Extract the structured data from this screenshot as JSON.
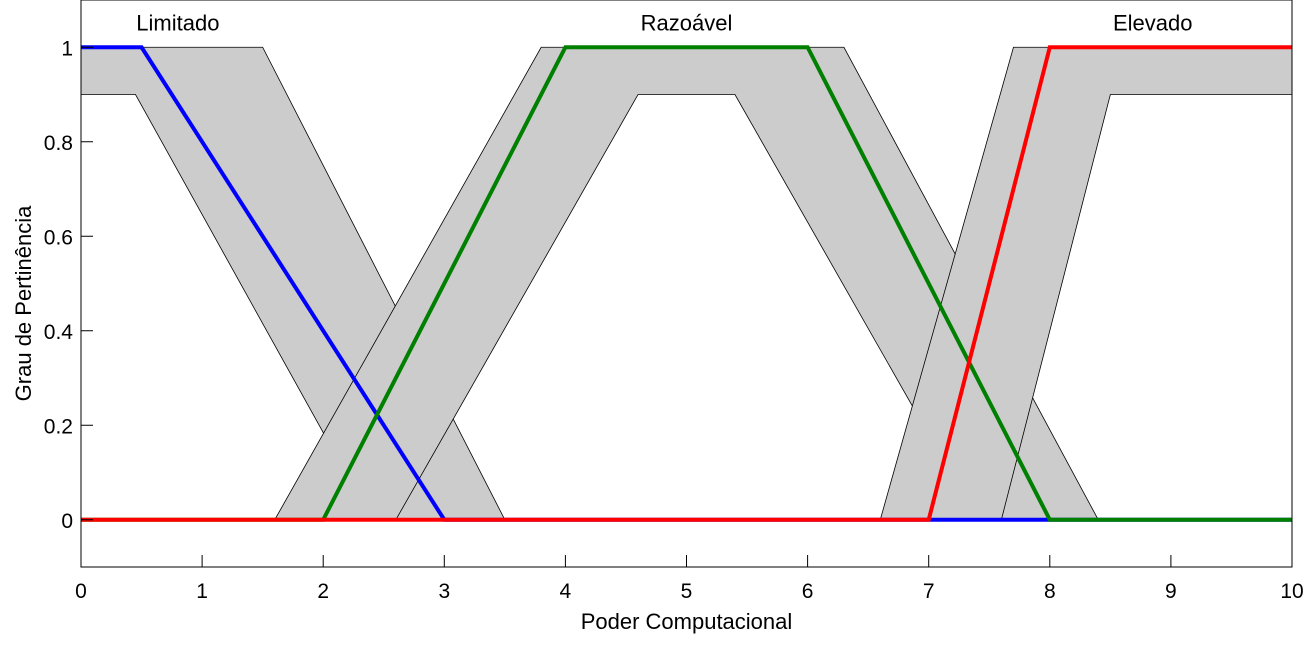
{
  "chart_data": {
    "type": "line",
    "title": "",
    "xlabel": "Poder Computacional",
    "ylabel": "Grau de Pertinência",
    "xlim": [
      0,
      10
    ],
    "ylim": [
      -0.1,
      1.1
    ],
    "xticks": [
      0,
      1,
      2,
      3,
      4,
      5,
      6,
      7,
      8,
      9,
      10
    ],
    "yticks": [
      0,
      0.2,
      0.4,
      0.6,
      0.8,
      1
    ],
    "ytick_labels": [
      "0",
      "0.2",
      "0.4",
      "0.6",
      "0.8",
      "1"
    ],
    "grid": false,
    "legend": "none",
    "fou_color": "#cccccc",
    "fou_edge_color": "#000000",
    "sets": [
      {
        "label": "Limitado",
        "label_pos": {
          "x": 0.8,
          "y": 1.035
        },
        "color": "#0000ff",
        "primary": {
          "x": [
            0,
            0.5,
            3,
            10
          ],
          "y": [
            1,
            1,
            0,
            0
          ]
        },
        "fou_upper": {
          "x": [
            0,
            1.5,
            3.5,
            10
          ],
          "y": [
            1,
            1,
            0,
            0
          ]
        },
        "fou_lower": {
          "x": [
            0,
            0.45,
            2.4,
            10
          ],
          "y": [
            0.9,
            0.9,
            0,
            0
          ]
        }
      },
      {
        "label": "Razoável",
        "label_pos": {
          "x": 5.0,
          "y": 1.035
        },
        "color": "#008000",
        "primary": {
          "x": [
            0,
            2,
            4,
            6,
            8,
            10
          ],
          "y": [
            0,
            0,
            1,
            1,
            0,
            0
          ]
        },
        "fou_upper": {
          "x": [
            0,
            1.6,
            3.8,
            6.3,
            8.4,
            10
          ],
          "y": [
            0,
            0,
            1,
            1,
            0,
            0
          ]
        },
        "fou_lower": {
          "x": [
            0,
            2.6,
            4.6,
            5.4,
            7.4,
            10
          ],
          "y": [
            0,
            0,
            0.9,
            0.9,
            0,
            0
          ]
        }
      },
      {
        "label": "Elevado",
        "label_pos": {
          "x": 8.85,
          "y": 1.035
        },
        "color": "#ff0000",
        "primary": {
          "x": [
            0,
            7,
            8,
            10
          ],
          "y": [
            0,
            0,
            1,
            1
          ]
        },
        "fou_upper": {
          "x": [
            0,
            6.6,
            7.7,
            10
          ],
          "y": [
            0,
            0,
            1,
            1
          ]
        },
        "fou_lower": {
          "x": [
            0,
            7.6,
            8.5,
            10
          ],
          "y": [
            0,
            0,
            0.9,
            0.9
          ]
        }
      }
    ]
  }
}
